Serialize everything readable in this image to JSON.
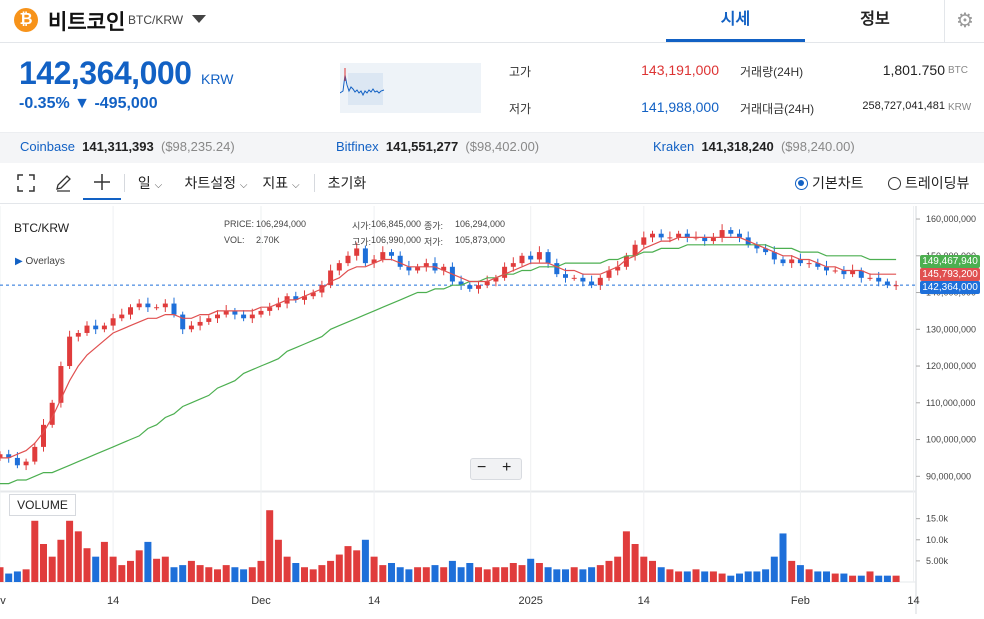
{
  "header": {
    "coin_icon": "₿",
    "coin_name": "비트코인",
    "pair": "BTC/KRW",
    "tab_quote": "시세",
    "tab_info": "정보",
    "settings_icon": "gear-icon"
  },
  "summary": {
    "price": "142,364,000",
    "unit": "KRW",
    "change_pct": "-0.35%",
    "change_amt": "▼ -495,000",
    "high_label": "고가",
    "high_value": "143,191,000",
    "low_label": "저가",
    "low_value": "141,988,000",
    "vol_label": "거래량(24H)",
    "vol_value": "1,801.750",
    "vol_unit": "BTC",
    "amt_label": "거래대금(24H)",
    "amt_value": "258,727,041,481",
    "amt_unit": "KRW"
  },
  "exchanges": [
    {
      "name": "Coinbase",
      "krw": "141,311,393",
      "usd": "($98,235.24)"
    },
    {
      "name": "Bitfinex",
      "krw": "141,551,277",
      "usd": "($98,402.00)"
    },
    {
      "name": "Kraken",
      "krw": "141,318,240",
      "usd": "($98,240.00)"
    }
  ],
  "toolbar": {
    "interval": "일",
    "chart_settings": "차트설정",
    "indicators": "지표",
    "reset": "초기화",
    "basic_chart": "기본차트",
    "tradingview": "트레이딩뷰"
  },
  "chart_info": {
    "symbol": "BTC/KRW",
    "overlays": "Overlays",
    "price_label": "PRICE:",
    "price_value": "106,294,000",
    "open_label": "시가:",
    "open_value": "106,845,000",
    "close_label": "종가:",
    "close_value": "106,294,000",
    "vol_label": "VOL:",
    "vol_value": "2.70K",
    "high_label": "고가:",
    "high_value": "106,990,000",
    "low_label": "저가:",
    "low_value": "105,873,000",
    "tag_ma_long": "149,467,940",
    "tag_ma_short": "145,793,200",
    "tag_price": "142,364,000",
    "volume_label": "VOLUME"
  },
  "chart_data": {
    "type": "candlestick",
    "price_axis": [
      "160,000,000",
      "150,000,000",
      "140,000,000",
      "130,000,000",
      "120,000,000",
      "110,000,000",
      "100,000,000",
      "90,000,000"
    ],
    "price_ticks": [
      160000000,
      150000000,
      140000000,
      130000000,
      120000000,
      110000000,
      100000000,
      90000000
    ],
    "volume_axis": [
      "15.0k",
      "10.0k",
      "5.00k"
    ],
    "volume_ticks": [
      15000,
      10000,
      5000
    ],
    "x_labels": [
      {
        "label": "ov",
        "idx": 0
      },
      {
        "label": "14",
        "idx": 13
      },
      {
        "label": "Dec",
        "idx": 30
      },
      {
        "label": "14",
        "idx": 43
      },
      {
        "label": "2025",
        "idx": 61
      },
      {
        "label": "14",
        "idx": 74
      },
      {
        "label": "Feb",
        "idx": 92
      },
      {
        "label": "14",
        "idx": 105
      }
    ],
    "closes": [
      96,
      95,
      93,
      94,
      98,
      104,
      110,
      120,
      128,
      129,
      131,
      130,
      131,
      133,
      134,
      136,
      137,
      136,
      136,
      137,
      134,
      130,
      131,
      132,
      133,
      134,
      135,
      134,
      133,
      134,
      135,
      136,
      137,
      139,
      138,
      139,
      140,
      142,
      146,
      148,
      150,
      152,
      148,
      149,
      151,
      150,
      147,
      146,
      147,
      148,
      146,
      147,
      143,
      142,
      141,
      142,
      143,
      144,
      147,
      148,
      150,
      149,
      151,
      148,
      145,
      144,
      144,
      143,
      142,
      144,
      146,
      147,
      150,
      153,
      155,
      156,
      155,
      155,
      156,
      155,
      155,
      154,
      155,
      157,
      156,
      155,
      153,
      152,
      151,
      149,
      148,
      149,
      148,
      148,
      147,
      146,
      146,
      145,
      146,
      144,
      144,
      143,
      142,
      142
    ],
    "volumes": [
      3500,
      2000,
      2500,
      3000,
      14500,
      9000,
      6000,
      10000,
      14500,
      12000,
      8000,
      6000,
      9500,
      6000,
      4000,
      5000,
      7500,
      9500,
      5500,
      6000,
      3500,
      4000,
      5000,
      4000,
      3500,
      3000,
      4000,
      3500,
      3000,
      3500,
      5000,
      17000,
      10000,
      6000,
      4500,
      3500,
      3000,
      4000,
      5000,
      6500,
      8500,
      7500,
      10000,
      6000,
      4000,
      4500,
      3500,
      3000,
      3500,
      3500,
      4000,
      3500,
      5000,
      3500,
      4500,
      3500,
      3000,
      3500,
      3500,
      4500,
      4000,
      5500,
      4500,
      3500,
      3000,
      3000,
      3500,
      3000,
      3500,
      4000,
      5000,
      6000,
      12000,
      9000,
      6000,
      5000,
      3500,
      3000,
      2500,
      2500,
      3000,
      2500,
      2500,
      2000,
      1500,
      2000,
      2500,
      2500,
      3000,
      6000,
      11500,
      5000,
      4000,
      3000,
      2500,
      2500,
      2000,
      2000,
      1500,
      1500,
      2500,
      1500,
      1500,
      1500
    ],
    "ma_short": [
      95,
      95,
      96,
      97,
      99,
      102,
      106,
      111,
      116,
      120,
      123,
      125,
      127,
      129,
      130,
      131,
      132,
      133,
      133,
      134,
      134,
      133,
      133,
      134,
      134,
      135,
      135,
      135,
      135,
      135,
      136,
      136,
      137,
      138,
      138,
      139,
      140,
      141,
      143,
      144,
      146,
      147,
      147,
      148,
      149,
      149,
      148,
      147,
      147,
      147,
      147,
      146,
      145,
      144,
      143,
      143,
      143,
      144,
      145,
      146,
      147,
      148,
      148,
      148,
      147,
      146,
      146,
      145,
      145,
      145,
      146,
      147,
      149,
      150,
      152,
      153,
      154,
      154,
      155,
      155,
      155,
      155,
      155,
      155,
      155,
      155,
      154,
      153,
      152,
      151,
      150,
      150,
      149,
      149,
      148,
      147,
      147,
      146,
      146,
      146,
      145,
      145,
      145,
      145
    ],
    "ma_long": [
      88,
      88,
      89,
      89,
      90,
      91,
      91,
      92,
      93,
      94,
      95,
      96,
      97,
      98,
      99,
      100,
      101,
      103,
      104,
      106,
      107,
      109,
      110,
      111,
      112,
      114,
      115,
      116,
      118,
      119,
      120,
      121,
      122,
      124,
      125,
      126,
      127,
      128,
      130,
      131,
      132,
      133,
      134,
      135,
      136,
      137,
      138,
      139,
      140,
      140,
      141,
      141,
      142,
      142,
      143,
      143,
      144,
      144,
      145,
      145,
      146,
      146,
      147,
      147,
      147,
      148,
      148,
      148,
      148,
      148,
      149,
      149,
      150,
      150,
      151,
      151,
      152,
      152,
      152,
      153,
      153,
      153,
      153,
      153,
      153,
      153,
      153,
      153,
      153,
      152,
      152,
      152,
      151,
      151,
      151,
      150,
      150,
      150,
      150,
      150,
      149,
      149,
      149,
      149
    ]
  }
}
